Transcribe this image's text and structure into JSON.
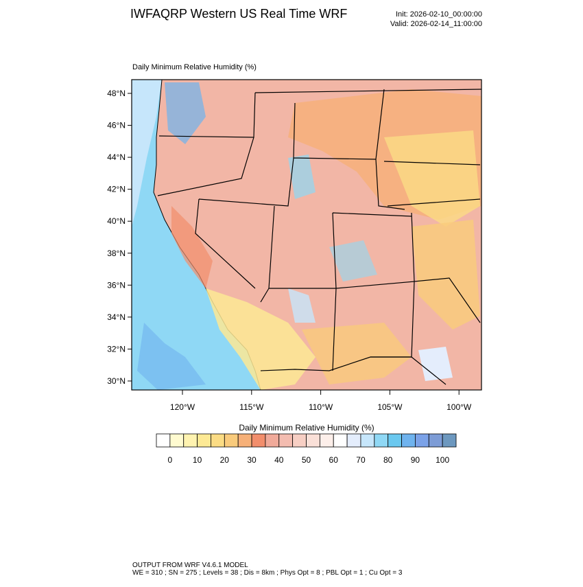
{
  "header": {
    "title": "IWFAQRP Western US Real Time WRF",
    "init": "Init: 2026-02-10_00:00:00",
    "valid": "Valid: 2026-02-14_11:00:00"
  },
  "map": {
    "title": "Daily Minimum Relative Humidity   (%)",
    "lat_labels": [
      "48°N",
      "46°N",
      "44°N",
      "42°N",
      "40°N",
      "38°N",
      "36°N",
      "34°N",
      "32°N",
      "30°N"
    ],
    "lon_labels": [
      "120°W",
      "115°W",
      "110°W",
      "105°W",
      "100°W"
    ]
  },
  "colorbar": {
    "title": "Daily Minimum Relative Humidity  (%)",
    "labels": [
      "0",
      "10",
      "20",
      "30",
      "40",
      "50",
      "60",
      "70",
      "80",
      "90",
      "100"
    ],
    "colors": [
      "#ffffff",
      "#fffbd0",
      "#fff3b0",
      "#fde994",
      "#fbdc84",
      "#f9cb7c",
      "#f6b078",
      "#f28e6c",
      "#f0aa9a",
      "#f3bcb0",
      "#f7cfc4",
      "#fae0d8",
      "#fdefea",
      "#ffffff",
      "#e4edfc",
      "#c6e6fb",
      "#8fd8f5",
      "#6ac8ef",
      "#6fb3ee",
      "#7ba2e8",
      "#7d9cd6",
      "#6d98bf"
    ]
  },
  "footer": {
    "line1": "OUTPUT FROM WRF V4.6.1 MODEL",
    "line2": "WE = 310 ; SN = 275 ; Levels = 38 ; Dis = 8km ; Phys Opt = 8 ; PBL Opt = 1 ; Cu Opt = 3"
  }
}
